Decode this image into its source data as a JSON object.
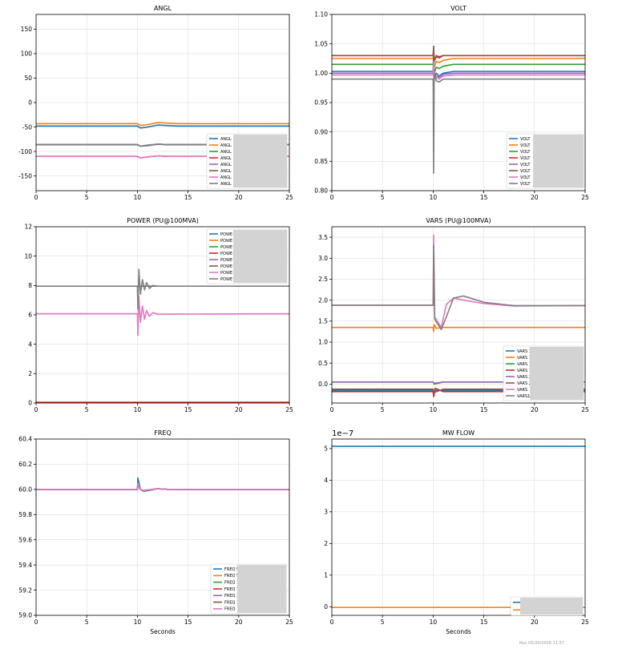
{
  "footer": "Run 05/20/2026 11:57",
  "colors": {
    "grid": "#dddddd",
    "axis": "#000000",
    "legend_blur": "#d3d3d3"
  },
  "chart_data": [
    {
      "type": "line",
      "title": "ANGL",
      "xlabel": "",
      "xlim": [
        0,
        25
      ],
      "ylim": [
        -180,
        180
      ],
      "xticks": [
        0,
        5,
        10,
        15,
        20,
        25
      ],
      "yticks": [
        -150,
        -100,
        -50,
        0,
        50,
        100,
        150
      ],
      "grid": true,
      "legend": "lower-right",
      "series": [
        {
          "name": "ANGL",
          "color": "#1f77b4",
          "x": [
            0,
            10,
            10.3,
            11,
            12,
            13,
            14,
            15,
            25
          ],
          "y": [
            -48,
            -48,
            -52,
            -50,
            -46,
            -47,
            -48,
            -48,
            -48
          ]
        },
        {
          "name": "ANGL",
          "color": "#ff7f0e",
          "x": [
            0,
            10,
            10.3,
            11,
            12,
            13,
            14,
            25
          ],
          "y": [
            -43,
            -43,
            -47,
            -45,
            -41,
            -42,
            -43,
            -43
          ]
        },
        {
          "name": "ANGL",
          "color": "#2ca02c",
          "x": [
            0,
            10,
            10.3,
            11,
            12,
            13,
            25
          ],
          "y": [
            -86,
            -86,
            -89,
            -88,
            -85,
            -86,
            -86
          ]
        },
        {
          "name": "ANGL",
          "color": "#d62728",
          "x": [
            0,
            10,
            10.3,
            11,
            12,
            13,
            25
          ],
          "y": [
            -110,
            -110,
            -113,
            -111,
            -109,
            -110,
            -110
          ]
        },
        {
          "name": "ANGL",
          "color": "#9467bd",
          "x": [
            0,
            10,
            10.3,
            11,
            12,
            13,
            25
          ],
          "y": [
            -86,
            -86,
            -89,
            -88,
            -85,
            -86,
            -86
          ]
        },
        {
          "name": "ANGL",
          "color": "#8c564b",
          "x": [
            0,
            10,
            10.3,
            11,
            12,
            13,
            25
          ],
          "y": [
            -86,
            -86,
            -89,
            -87,
            -85,
            -86,
            -86
          ]
        },
        {
          "name": "ANGL",
          "color": "#e377c2",
          "x": [
            0,
            10,
            10.3,
            11,
            12,
            13,
            25
          ],
          "y": [
            -110,
            -110,
            -113,
            -111,
            -109,
            -110,
            -110
          ]
        },
        {
          "name": "ANGL",
          "color": "#7f7f7f",
          "x": [
            0,
            10,
            10.3,
            11,
            12,
            13,
            25
          ],
          "y": [
            -86,
            -86,
            -89,
            -87,
            -85,
            -86,
            -86
          ]
        }
      ]
    },
    {
      "type": "line",
      "title": "VOLT",
      "xlabel": "",
      "xlim": [
        0,
        25
      ],
      "ylim": [
        0.8,
        1.1
      ],
      "xticks": [
        0,
        5,
        10,
        15,
        20,
        25
      ],
      "yticks": [
        0.8,
        0.85,
        0.9,
        0.95,
        1.0,
        1.05,
        1.1
      ],
      "ytick_labels": [
        "0.80",
        "0.85",
        "0.90",
        "0.95",
        "1.00",
        "1.05",
        "1.10"
      ],
      "grid": true,
      "legend": "lower-right",
      "series": [
        {
          "name": "VOLT",
          "color": "#1f77b4",
          "x": [
            0,
            10,
            10.05,
            10.1,
            10.3,
            10.6,
            11,
            12,
            25
          ],
          "y": [
            1.003,
            1.003,
            1.03,
            0.99,
            1.0,
            0.995,
            1.0,
            1.003,
            1.003
          ]
        },
        {
          "name": "VOLT",
          "color": "#ff7f0e",
          "x": [
            0,
            10,
            10.05,
            10.1,
            10.3,
            10.6,
            11,
            12,
            25
          ],
          "y": [
            1.025,
            1.025,
            1.04,
            1.01,
            1.02,
            1.018,
            1.022,
            1.025,
            1.025
          ]
        },
        {
          "name": "VOLT",
          "color": "#2ca02c",
          "x": [
            0,
            10,
            10.05,
            10.1,
            10.3,
            10.6,
            11,
            12,
            25
          ],
          "y": [
            1.015,
            1.015,
            1.03,
            1.0,
            1.01,
            1.008,
            1.012,
            1.015,
            1.015
          ]
        },
        {
          "name": "VOLT",
          "color": "#d62728",
          "x": [
            0,
            10,
            10.05,
            10.1,
            10.3,
            10.6,
            11,
            12,
            25
          ],
          "y": [
            1.03,
            1.03,
            1.045,
            1.02,
            1.028,
            1.026,
            1.03,
            1.03,
            1.03
          ]
        },
        {
          "name": "VOLT",
          "color": "#9467bd",
          "x": [
            0,
            10,
            10.05,
            10.1,
            10.3,
            10.6,
            11,
            12,
            25
          ],
          "y": [
            1.0,
            1.0,
            1.02,
            0.99,
            0.995,
            0.993,
            0.998,
            1.0,
            1.0
          ]
        },
        {
          "name": "VOLT",
          "color": "#8c564b",
          "x": [
            0,
            10,
            10.05,
            10.1,
            10.3,
            10.6,
            11,
            12,
            25
          ],
          "y": [
            1.03,
            1.03,
            1.046,
            1.02,
            1.03,
            1.028,
            1.03,
            1.03,
            1.03
          ]
        },
        {
          "name": "VOLT",
          "color": "#e377c2",
          "x": [
            0,
            10,
            10.05,
            10.1,
            10.3,
            10.6,
            11,
            12,
            25
          ],
          "y": [
            0.997,
            0.997,
            1.02,
            0.99,
            0.992,
            0.99,
            0.995,
            0.997,
            0.997
          ]
        },
        {
          "name": "VOLT",
          "color": "#7f7f7f",
          "x": [
            0,
            10,
            10.05,
            10.1,
            10.3,
            10.6,
            11,
            12,
            25
          ],
          "y": [
            0.99,
            0.99,
            0.83,
            1.0,
            0.987,
            0.985,
            0.99,
            0.99,
            0.99
          ]
        }
      ]
    },
    {
      "type": "line",
      "title": "POWER (PU@100MVA)",
      "xlabel": "",
      "xlim": [
        0,
        25
      ],
      "ylim": [
        0,
        12
      ],
      "xticks": [
        0,
        5,
        10,
        15,
        20,
        25
      ],
      "yticks": [
        0,
        2,
        4,
        6,
        8,
        10,
        12
      ],
      "grid": true,
      "legend": "upper-right",
      "series": [
        {
          "name": "POWE",
          "color": "#1f77b4",
          "x": [
            0,
            25
          ],
          "y": [
            0.02,
            0.02
          ]
        },
        {
          "name": "POWE",
          "color": "#ff7f0e",
          "x": [
            0,
            25
          ],
          "y": [
            0.05,
            0.05
          ]
        },
        {
          "name": "POWE",
          "color": "#2ca02c",
          "x": [
            0,
            25
          ],
          "y": [
            0.03,
            0.03
          ]
        },
        {
          "name": "POWE",
          "color": "#d62728",
          "x": [
            0,
            25
          ],
          "y": [
            0.04,
            0.04
          ]
        },
        {
          "name": "POWE",
          "color": "#9467bd",
          "x": [
            0,
            25
          ],
          "y": [
            7.95,
            7.95
          ]
        },
        {
          "name": "POWE",
          "color": "#8c564b",
          "x": [
            0,
            25
          ],
          "y": [
            7.95,
            7.95
          ]
        },
        {
          "name": "POWE",
          "color": "#e377c2",
          "x": [
            0,
            10,
            10.05,
            10.15,
            10.3,
            10.5,
            10.7,
            10.9,
            11.2,
            11.5,
            12,
            25
          ],
          "y": [
            6.08,
            6.08,
            4.6,
            7.3,
            5.5,
            6.6,
            5.7,
            6.3,
            5.9,
            6.15,
            6.05,
            6.08
          ]
        },
        {
          "name": "POWE",
          "color": "#7f7f7f",
          "x": [
            0,
            10,
            10.05,
            10.15,
            10.3,
            10.5,
            10.7,
            10.9,
            11.2,
            11.5,
            12,
            25
          ],
          "y": [
            7.95,
            7.95,
            6.4,
            9.1,
            7.4,
            8.4,
            7.7,
            8.2,
            7.8,
            8.0,
            7.95,
            7.95
          ]
        }
      ]
    },
    {
      "type": "line",
      "title": "VARS (PU@100MVA)",
      "xlabel": "",
      "xlim": [
        0,
        25
      ],
      "ylim": [
        -0.45,
        3.75
      ],
      "xticks": [
        0,
        5,
        10,
        15,
        20,
        25
      ],
      "yticks": [
        0.0,
        0.5,
        1.0,
        1.5,
        2.0,
        2.5,
        3.0,
        3.5
      ],
      "ytick_labels": [
        "0.0",
        "0.5",
        "1.0",
        "1.5",
        "2.0",
        "2.5",
        "3.0",
        "3.5"
      ],
      "grid": true,
      "legend": "lower-right",
      "series": [
        {
          "name": "VARS 1",
          "color": "#1f77b4",
          "x": [
            0,
            25
          ],
          "y": [
            -0.15,
            -0.15
          ]
        },
        {
          "name": "VARS 1",
          "color": "#ff7f0e",
          "x": [
            0,
            10,
            10.05,
            10.1,
            10.3,
            11,
            25
          ],
          "y": [
            1.35,
            1.35,
            1.25,
            1.42,
            1.33,
            1.35,
            1.35
          ]
        },
        {
          "name": "VARS 1",
          "color": "#2ca02c",
          "x": [
            0,
            10,
            10.1,
            11,
            25
          ],
          "y": [
            0.05,
            0.05,
            0.0,
            0.05,
            0.05
          ]
        },
        {
          "name": "VARS 1",
          "color": "#d62728",
          "x": [
            0,
            10,
            10.05,
            10.2,
            11,
            25
          ],
          "y": [
            -0.18,
            -0.18,
            -0.3,
            -0.1,
            -0.18,
            -0.18
          ]
        },
        {
          "name": "VARS 2",
          "color": "#9467bd",
          "x": [
            0,
            10,
            10.1,
            11,
            25
          ],
          "y": [
            0.05,
            0.05,
            0.02,
            0.05,
            0.05
          ]
        },
        {
          "name": "VARS 2",
          "color": "#8c564b",
          "x": [
            0,
            10,
            10.1,
            11,
            25
          ],
          "y": [
            -0.12,
            -0.12,
            -0.2,
            -0.12,
            -0.12
          ]
        },
        {
          "name": "VARS",
          "color": "#e377c2",
          "x": [
            0,
            10,
            10.05,
            10.15,
            10.4,
            10.8,
            11.3,
            12,
            13,
            15,
            18,
            25
          ],
          "y": [
            1.88,
            1.88,
            3.55,
            1.6,
            1.5,
            1.35,
            1.9,
            2.05,
            2.0,
            1.92,
            1.86,
            1.87
          ]
        },
        {
          "name": "VARS1",
          "color": "#7f7f7f",
          "x": [
            0,
            10,
            10.05,
            10.15,
            10.4,
            10.8,
            11.3,
            12,
            13,
            15,
            18,
            25
          ],
          "y": [
            1.88,
            1.88,
            3.3,
            1.55,
            1.45,
            1.3,
            1.6,
            2.05,
            2.1,
            1.95,
            1.87,
            1.87
          ]
        }
      ]
    },
    {
      "type": "line",
      "title": "FREQ",
      "xlabel": "Seconds",
      "xlim": [
        0,
        25
      ],
      "ylim": [
        59.0,
        60.4
      ],
      "xticks": [
        0,
        5,
        10,
        15,
        20,
        25
      ],
      "yticks": [
        59.0,
        59.2,
        59.4,
        59.6,
        59.8,
        60.0,
        60.2,
        60.4
      ],
      "ytick_labels": [
        "59.0",
        "59.2",
        "59.4",
        "59.6",
        "59.8",
        "60.0",
        "60.2",
        "60.4"
      ],
      "grid": true,
      "legend": "lower-right",
      "series": [
        {
          "name": "FREQ 5",
          "color": "#1f77b4",
          "x": [
            0,
            10,
            10.05,
            10.3,
            10.6,
            11,
            12,
            13,
            25
          ],
          "y": [
            60.0,
            60.0,
            60.09,
            60.0,
            59.985,
            59.99,
            60.005,
            60.0,
            60.0
          ]
        },
        {
          "name": "FREQ 5",
          "color": "#ff7f0e",
          "x": [
            0,
            10,
            10.05,
            10.3,
            10.6,
            11,
            12,
            13,
            25
          ],
          "y": [
            60.0,
            60.0,
            60.04,
            60.0,
            59.99,
            59.995,
            60.005,
            60.0,
            60.0
          ]
        },
        {
          "name": "FREQ 1",
          "color": "#2ca02c",
          "x": [
            0,
            10,
            10.05,
            10.3,
            10.6,
            11,
            12,
            13,
            25
          ],
          "y": [
            60.0,
            60.0,
            60.04,
            60.0,
            59.99,
            59.995,
            60.005,
            60.0,
            60.0
          ]
        },
        {
          "name": "FREQ 1",
          "color": "#d62728",
          "x": [
            0,
            10,
            10.05,
            10.3,
            10.6,
            11,
            12,
            13,
            25
          ],
          "y": [
            60.0,
            60.0,
            60.04,
            60.0,
            59.99,
            59.995,
            60.005,
            60.0,
            60.0
          ]
        },
        {
          "name": "FREQ 1",
          "color": "#9467bd",
          "x": [
            0,
            10,
            10.05,
            10.3,
            10.6,
            11,
            12,
            13,
            25
          ],
          "y": [
            60.0,
            60.0,
            60.04,
            60.0,
            59.99,
            59.995,
            60.005,
            60.0,
            60.0
          ]
        },
        {
          "name": "FREQ 1",
          "color": "#8c564b",
          "x": [
            0,
            10,
            10.05,
            10.3,
            10.6,
            11,
            12,
            13,
            25
          ],
          "y": [
            60.0,
            60.0,
            60.04,
            60.0,
            59.99,
            59.995,
            60.005,
            60.0,
            60.0
          ]
        },
        {
          "name": "FREQ",
          "color": "#e377c2",
          "x": [
            0,
            10,
            10.05,
            10.3,
            10.6,
            11,
            12,
            13,
            25
          ],
          "y": [
            60.0,
            60.0,
            60.05,
            60.0,
            59.99,
            59.995,
            60.005,
            60.0,
            60.0
          ]
        }
      ]
    },
    {
      "type": "line",
      "title": "MW FLOW",
      "xlabel": "Seconds",
      "multiplier": "1e−7",
      "xlim": [
        0,
        25
      ],
      "ylim": [
        -0.27,
        5.3
      ],
      "xticks": [
        0,
        5,
        10,
        15,
        20,
        25
      ],
      "yticks": [
        0,
        1,
        2,
        3,
        4,
        5
      ],
      "grid": true,
      "legend": "lower-right",
      "series": [
        {
          "color": "#1f77b4",
          "x": [
            0,
            25
          ],
          "y": [
            5.07,
            5.07
          ]
        },
        {
          "color": "#ff7f0e",
          "x": [
            0,
            25
          ],
          "y": [
            -0.02,
            -0.02
          ]
        }
      ]
    }
  ]
}
